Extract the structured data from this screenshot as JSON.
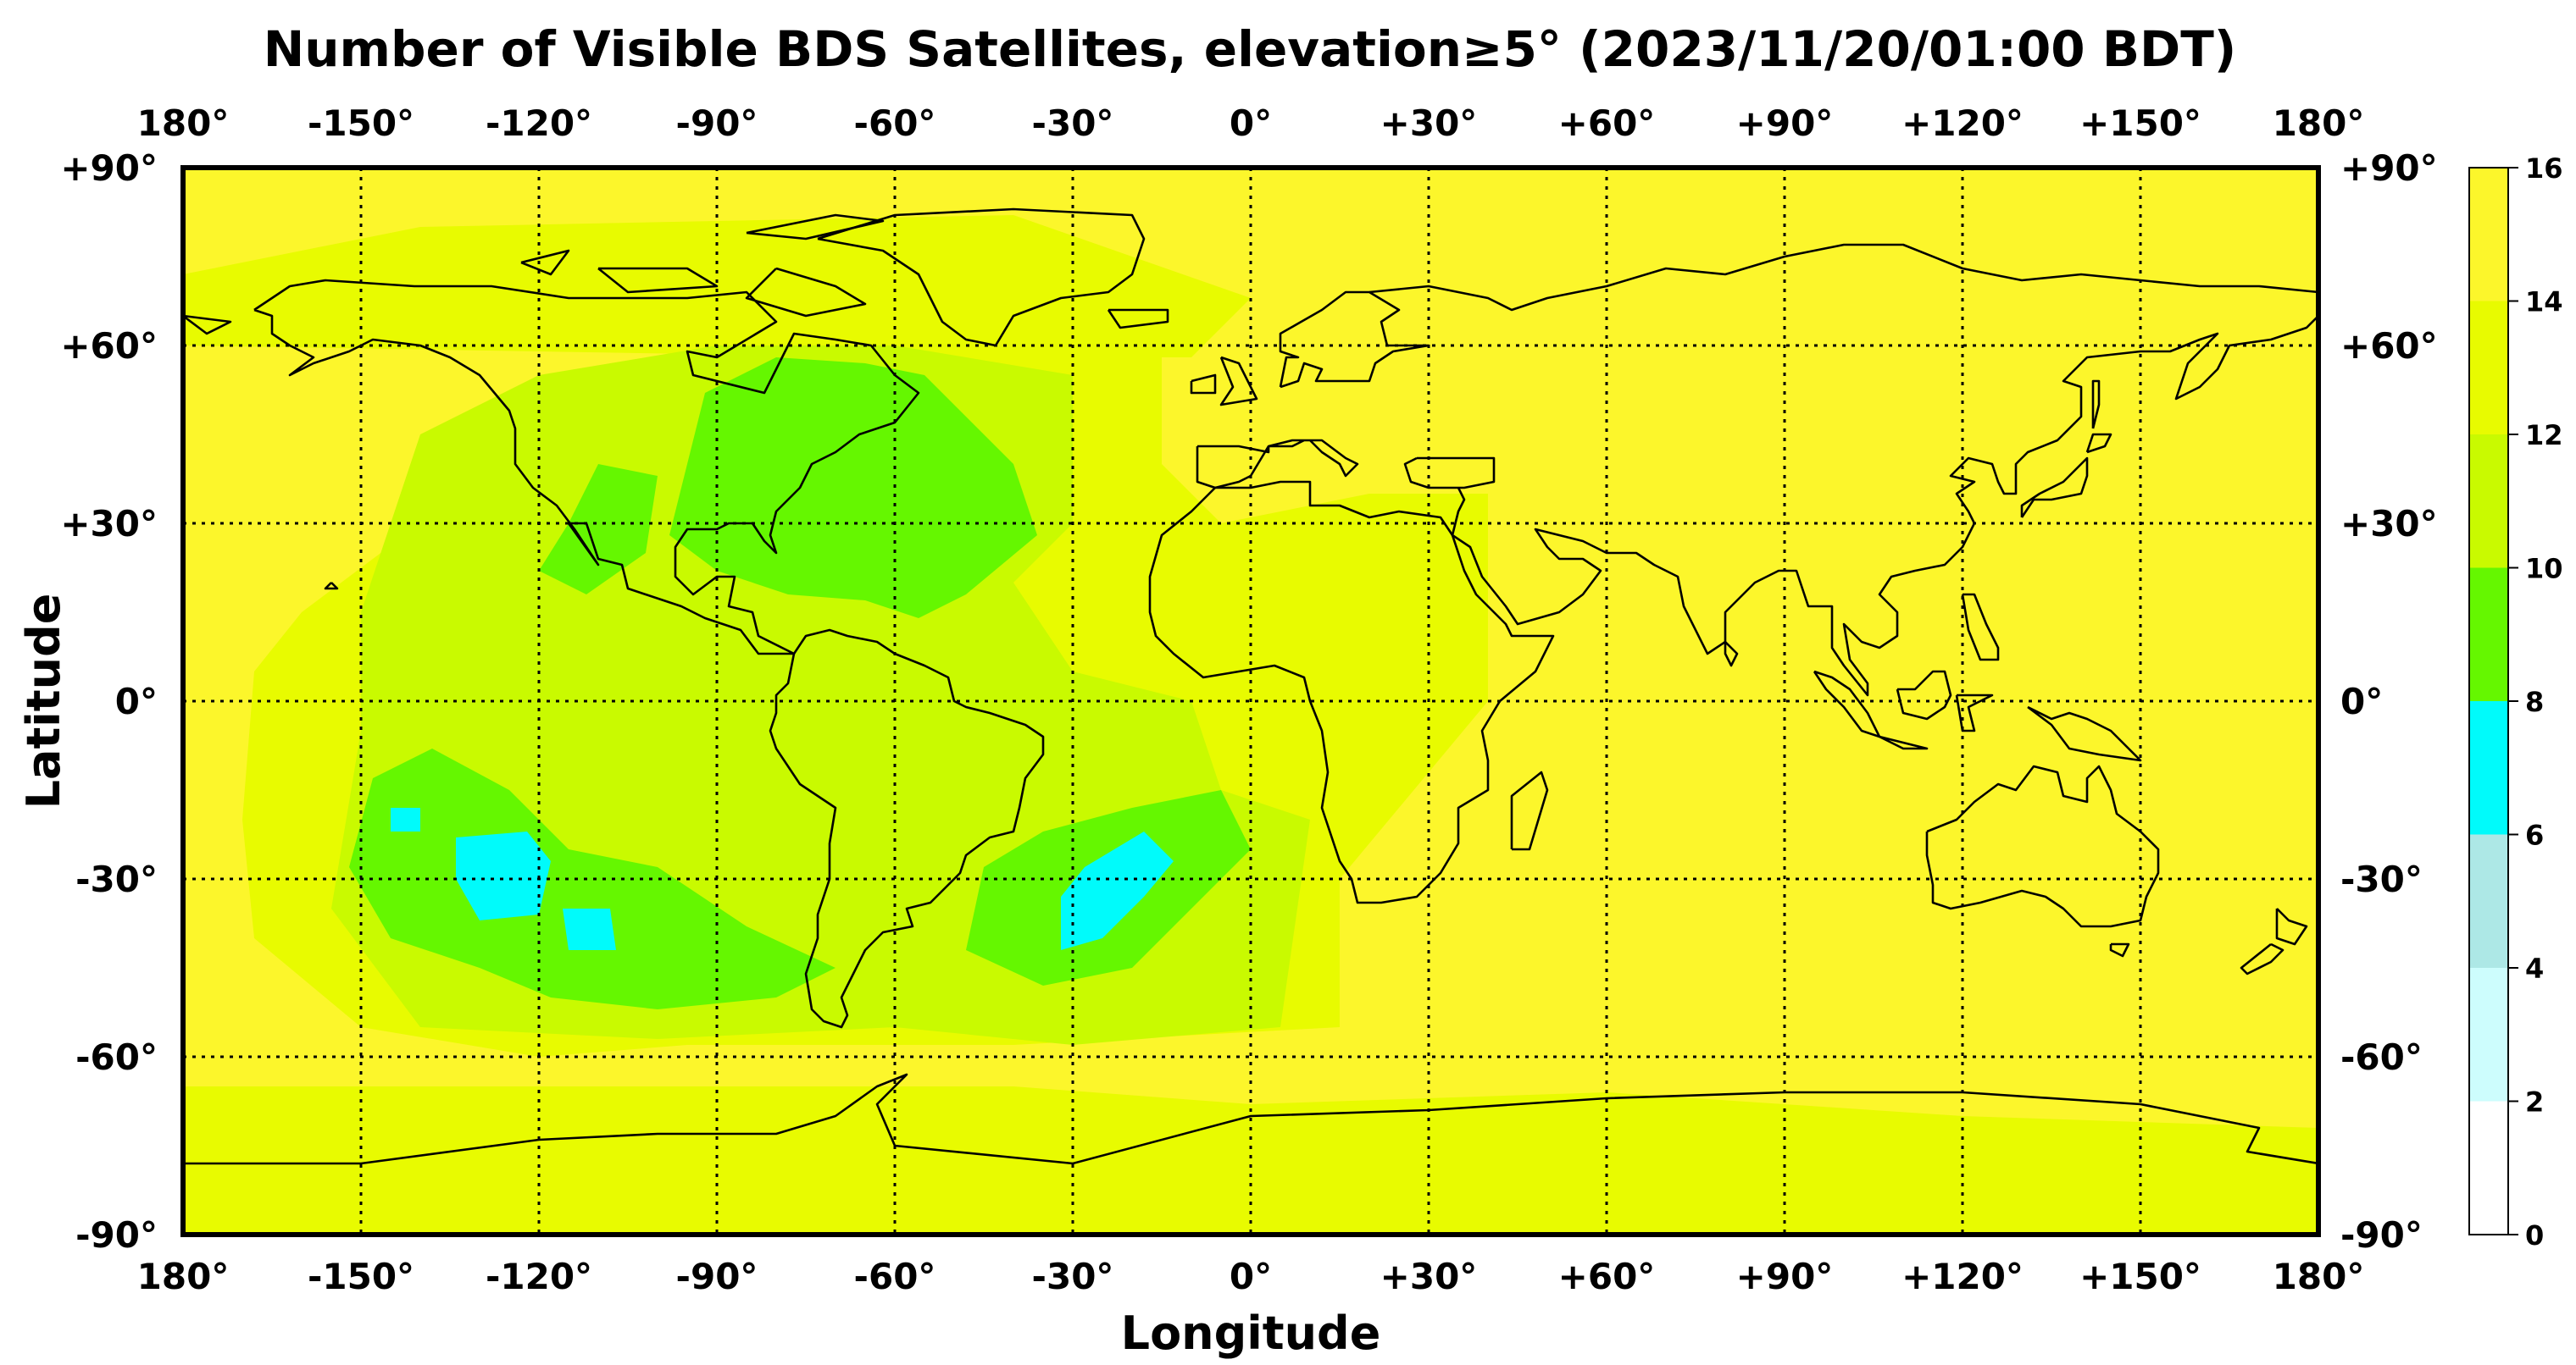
{
  "chart_data": {
    "type": "heatmap",
    "title": "Number of Visible BDS Satellites, elevation≥5° (2023/11/20/01:00 BDT)",
    "xlabel": "Longitude",
    "ylabel": "Latitude",
    "xlim": [
      -180,
      180
    ],
    "ylim": [
      -90,
      90
    ],
    "x_ticks": [
      -180,
      -150,
      -120,
      -90,
      -60,
      -30,
      0,
      30,
      60,
      90,
      120,
      150,
      180
    ],
    "x_tick_labels": [
      "180°",
      "-150°",
      "-120°",
      "-90°",
      "-60°",
      "-30°",
      "0°",
      "+30°",
      "+60°",
      "+90°",
      "+120°",
      "+150°",
      "180°"
    ],
    "y_ticks": [
      90,
      60,
      30,
      0,
      -30,
      -60,
      -90
    ],
    "y_tick_labels": [
      "+90°",
      "+60°",
      "+30°",
      "0°",
      "-30°",
      "-60°",
      "-90°"
    ],
    "grid": true,
    "colorbar": {
      "bounds": [
        0,
        2,
        4,
        6,
        8,
        10,
        12,
        14,
        16
      ],
      "colors": [
        "#ffffff",
        "#cdfdfd",
        "#ade8e6",
        "#00fbfb",
        "#65f700",
        "#c9fa00",
        "#e8fb00",
        "#fcf62b"
      ],
      "tick_labels": [
        "0",
        "2",
        "4",
        "6",
        "8",
        "10",
        "12",
        "14",
        "16"
      ],
      "placement": "right"
    },
    "background_value": 15,
    "regions": [
      {
        "value": 13,
        "polygon": [
          [
            -180,
            -65
          ],
          [
            -40,
            -65
          ],
          [
            0,
            -68
          ],
          [
            60,
            -66
          ],
          [
            120,
            -70
          ],
          [
            180,
            -72
          ],
          [
            180,
            -90
          ],
          [
            -180,
            -90
          ]
        ]
      },
      {
        "value": 13,
        "polygon": [
          [
            -180,
            60
          ],
          [
            -60,
            58
          ],
          [
            -10,
            58
          ],
          [
            0,
            68
          ],
          [
            -40,
            82
          ],
          [
            -140,
            80
          ],
          [
            -180,
            72
          ]
        ]
      },
      {
        "value": 13,
        "polygon": [
          [
            -120,
            50
          ],
          [
            -88,
            60
          ],
          [
            -60,
            65
          ],
          [
            -30,
            62
          ],
          [
            -15,
            60
          ],
          [
            -15,
            40
          ],
          [
            -5,
            30
          ],
          [
            20,
            35
          ],
          [
            40,
            35
          ],
          [
            40,
            0
          ],
          [
            15,
            -30
          ],
          [
            15,
            -55
          ],
          [
            -40,
            -58
          ],
          [
            -95,
            -58
          ],
          [
            -120,
            -60
          ],
          [
            -150,
            -55
          ],
          [
            -168,
            -40
          ],
          [
            -170,
            -20
          ],
          [
            -168,
            5
          ],
          [
            -160,
            15
          ],
          [
            -140,
            30
          ]
        ]
      },
      {
        "value": 11,
        "polygon": [
          [
            -140,
            45
          ],
          [
            -120,
            55
          ],
          [
            -90,
            60
          ],
          [
            -60,
            60
          ],
          [
            -30,
            55
          ],
          [
            -30,
            30
          ],
          [
            -40,
            20
          ],
          [
            -30,
            5
          ],
          [
            -10,
            0
          ],
          [
            -5,
            -15
          ],
          [
            10,
            -20
          ],
          [
            5,
            -55
          ],
          [
            -30,
            -58
          ],
          [
            -60,
            -55
          ],
          [
            -100,
            -57
          ],
          [
            -140,
            -55
          ],
          [
            -155,
            -35
          ],
          [
            -150,
            -5
          ],
          [
            -150,
            15
          ]
        ]
      },
      {
        "value": 9,
        "polygon": [
          [
            -92,
            52
          ],
          [
            -80,
            58
          ],
          [
            -65,
            57
          ],
          [
            -55,
            55
          ],
          [
            -40,
            40
          ],
          [
            -36,
            28
          ],
          [
            -48,
            18
          ],
          [
            -56,
            14
          ],
          [
            -65,
            17
          ],
          [
            -78,
            18
          ],
          [
            -90,
            22
          ],
          [
            -98,
            28
          ]
        ]
      },
      {
        "value": 9,
        "polygon": [
          [
            -115,
            30
          ],
          [
            -110,
            40
          ],
          [
            -100,
            38
          ],
          [
            -102,
            25
          ],
          [
            -112,
            18
          ],
          [
            -120,
            22
          ]
        ]
      },
      {
        "value": 9,
        "polygon": [
          [
            -148,
            -13
          ],
          [
            -138,
            -8
          ],
          [
            -125,
            -15
          ],
          [
            -115,
            -25
          ],
          [
            -100,
            -28
          ],
          [
            -85,
            -38
          ],
          [
            -70,
            -45
          ],
          [
            -80,
            -50
          ],
          [
            -100,
            -52
          ],
          [
            -118,
            -50
          ],
          [
            -130,
            -45
          ],
          [
            -145,
            -40
          ],
          [
            -152,
            -28
          ]
        ]
      },
      {
        "value": 9,
        "polygon": [
          [
            -45,
            -28
          ],
          [
            -35,
            -22
          ],
          [
            -20,
            -18
          ],
          [
            -5,
            -15
          ],
          [
            0,
            -25
          ],
          [
            -10,
            -35
          ],
          [
            -20,
            -45
          ],
          [
            -35,
            -48
          ],
          [
            -48,
            -42
          ]
        ]
      },
      {
        "value": 7,
        "polygon": [
          [
            -134,
            -23
          ],
          [
            -122,
            -22
          ],
          [
            -118,
            -27
          ],
          [
            -120,
            -36
          ],
          [
            -130,
            -37
          ],
          [
            -134,
            -30
          ]
        ]
      },
      {
        "value": 7,
        "polygon": [
          [
            -116,
            -35
          ],
          [
            -108,
            -35
          ],
          [
            -107,
            -42
          ],
          [
            -115,
            -42
          ]
        ]
      },
      {
        "value": 7,
        "polygon": [
          [
            -145,
            -18
          ],
          [
            -140,
            -18
          ],
          [
            -140,
            -22
          ],
          [
            -145,
            -22
          ]
        ]
      },
      {
        "value": 7,
        "polygon": [
          [
            -28,
            -28
          ],
          [
            -18,
            -22
          ],
          [
            -13,
            -27
          ],
          [
            -18,
            -33
          ],
          [
            -25,
            -40
          ],
          [
            -32,
            -42
          ],
          [
            -32,
            -33
          ]
        ]
      }
    ]
  }
}
